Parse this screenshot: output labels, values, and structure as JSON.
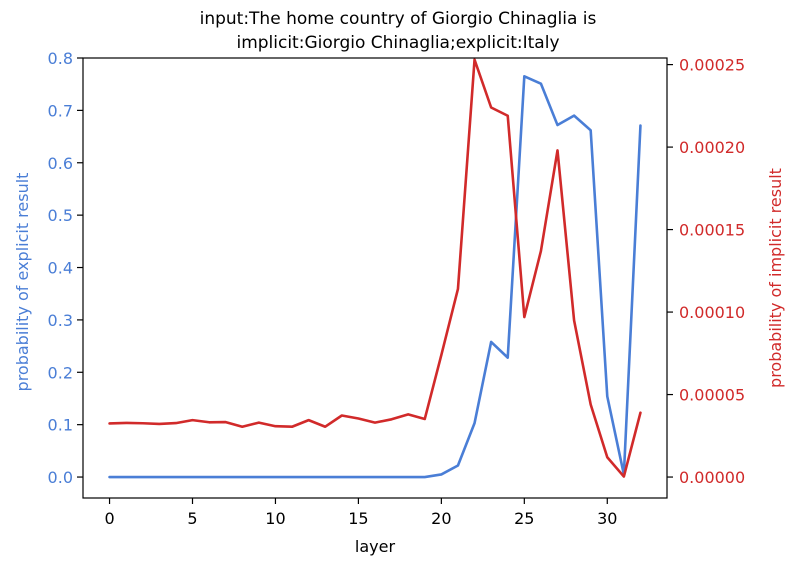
{
  "chart_data": {
    "type": "line",
    "title": [
      "input:The home country of Giorgio Chinaglia is",
      "implicit:Giorgio Chinaglia;explicit:Italy"
    ],
    "xlabel": "layer",
    "ylabel_left": "probability of explicit result",
    "ylabel_right": "probability of implicit result",
    "xlim": [
      -1.6,
      33.6
    ],
    "ylim_left": [
      -0.04,
      0.8
    ],
    "ylim_right": [
      -1.27e-05,
      0.000254
    ],
    "xticks": [
      0,
      5,
      10,
      15,
      20,
      25,
      30
    ],
    "xtick_labels": [
      "0",
      "5",
      "10",
      "15",
      "20",
      "25",
      "30"
    ],
    "yticks_left": [
      0.0,
      0.1,
      0.2,
      0.3,
      0.4,
      0.5,
      0.6,
      0.7,
      0.8
    ],
    "ytick_labels_left": [
      "0.0",
      "0.1",
      "0.2",
      "0.3",
      "0.4",
      "0.5",
      "0.6",
      "0.7",
      "0.8"
    ],
    "yticks_right": [
      0,
      5e-05,
      0.0001,
      0.00015,
      0.0002,
      0.00025
    ],
    "ytick_labels_right": [
      "0.00000",
      "0.00005",
      "0.00010",
      "0.00015",
      "0.00020",
      "0.00025"
    ],
    "grid": false,
    "colors": {
      "explicit": "#4a7ed6",
      "implicit": "#d12a2a"
    },
    "x": [
      0,
      1,
      2,
      3,
      4,
      5,
      6,
      7,
      8,
      9,
      10,
      11,
      12,
      13,
      14,
      15,
      16,
      17,
      18,
      19,
      20,
      21,
      22,
      23,
      24,
      25,
      26,
      27,
      28,
      29,
      30,
      31,
      32
    ],
    "series": [
      {
        "axis": "left",
        "values": [
          0,
          0,
          0,
          0,
          0,
          0,
          0,
          0,
          0,
          0,
          0,
          0,
          0,
          0,
          0,
          0,
          0,
          0,
          0,
          0,
          0.005,
          0.022,
          0.103,
          0.258,
          0.228,
          0.765,
          0.751,
          0.672,
          0.69,
          0.662,
          0.154,
          0.005,
          0.671
        ]
      },
      {
        "axis": "right",
        "values": [
          3.25e-05,
          3.28e-05,
          3.26e-05,
          3.22e-05,
          3.27e-05,
          3.45e-05,
          3.32e-05,
          3.33e-05,
          3.05e-05,
          3.3e-05,
          3.08e-05,
          3.05e-05,
          3.45e-05,
          3.05e-05,
          3.73e-05,
          3.55e-05,
          3.3e-05,
          3.5e-05,
          3.8e-05,
          3.52e-05,
          7.4e-05,
          0.000114,
          0.000253,
          0.000224,
          0.000219,
          9.7e-05,
          0.000137,
          0.000198,
          9.5e-05,
          4.4e-05,
          1.2e-05,
          3e-07,
          3.9e-05
        ]
      }
    ]
  }
}
